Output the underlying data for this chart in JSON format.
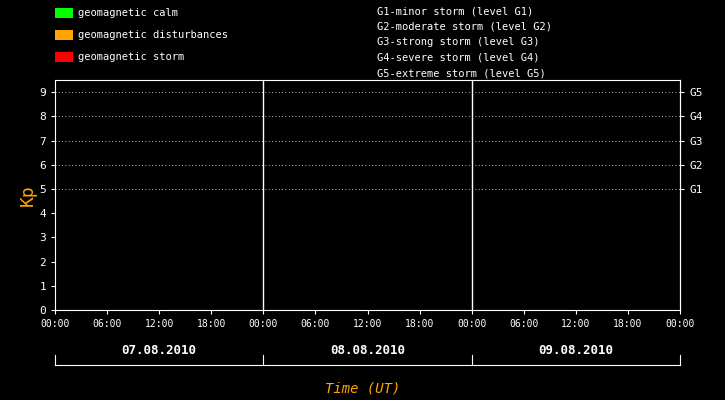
{
  "bg_color": "#000000",
  "text_color": "#ffffff",
  "orange_color": "#FFA500",
  "legend_items": [
    {
      "label": "geomagnetic calm",
      "color": "#00ff00"
    },
    {
      "label": "geomagnetic disturbances",
      "color": "#FFA500"
    },
    {
      "label": "geomagnetic storm",
      "color": "#ff0000"
    }
  ],
  "storm_levels": [
    "G1-minor storm (level G1)",
    "G2-moderate storm (level G2)",
    "G3-strong storm (level G3)",
    "G4-severe storm (level G4)",
    "G5-extreme storm (level G5)"
  ],
  "right_labels": [
    "G5",
    "G4",
    "G3",
    "G2",
    "G1"
  ],
  "right_label_yvals": [
    9,
    8,
    7,
    6,
    5
  ],
  "ylabel": "Kp",
  "xlabel": "Time (UT)",
  "ylim": [
    0,
    9.5
  ],
  "yticks": [
    0,
    1,
    2,
    3,
    4,
    5,
    6,
    7,
    8,
    9
  ],
  "days": [
    "07.08.2010",
    "08.08.2010",
    "09.08.2010"
  ],
  "num_days": 3,
  "dotted_levels": [
    5,
    6,
    7,
    8,
    9
  ],
  "font_family": "monospace",
  "time_labels_cycle": [
    "00:00",
    "06:00",
    "12:00",
    "18:00"
  ]
}
